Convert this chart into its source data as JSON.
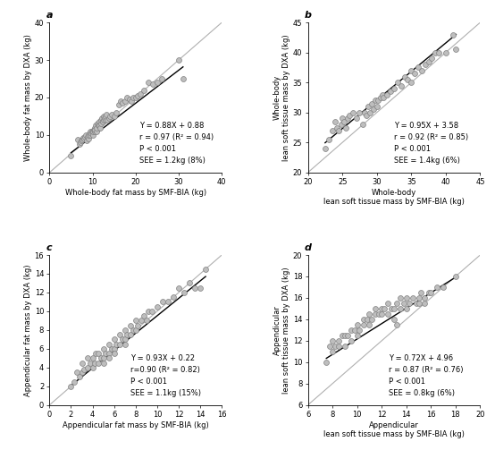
{
  "panels": [
    {
      "label": "a",
      "xlabel": "Whole-body fat mass by SMF-BIA (kg)",
      "ylabel": "Whole-body fat mass by DXA (kg)",
      "xlim": [
        0,
        40
      ],
      "ylim": [
        0,
        40
      ],
      "xticks": [
        0,
        10,
        20,
        30,
        40
      ],
      "yticks": [
        0,
        10,
        20,
        30,
        40
      ],
      "slope": 0.88,
      "intercept": 0.88,
      "reg_x_start": 5.0,
      "reg_x_end": 31.0,
      "annotation": "Y = 0.88X + 0.88\nr = 0.97 (R² = 0.94)\nP < 0.001\nSEE = 1.2kg (8%)",
      "ann_x": 0.52,
      "ann_y": 0.05,
      "scatter_x": [
        5.0,
        6.5,
        7.0,
        7.2,
        7.4,
        7.6,
        7.8,
        8.0,
        8.2,
        8.4,
        8.6,
        8.8,
        9.0,
        9.0,
        9.2,
        9.4,
        9.5,
        9.6,
        9.8,
        10.0,
        10.0,
        10.2,
        10.4,
        10.5,
        10.6,
        10.8,
        11.0,
        11.0,
        11.2,
        11.4,
        11.5,
        11.6,
        11.8,
        12.0,
        12.0,
        12.2,
        12.4,
        12.5,
        12.6,
        12.8,
        13.0,
        13.0,
        13.2,
        13.5,
        13.8,
        14.0,
        14.5,
        15.0,
        15.5,
        16.0,
        16.5,
        17.0,
        17.5,
        18.0,
        18.5,
        19.0,
        19.5,
        20.0,
        20.5,
        21.0,
        22.0,
        23.0,
        24.0,
        25.0,
        26.0,
        30.0,
        31.0
      ],
      "scatter_y": [
        4.5,
        8.8,
        7.5,
        8.0,
        8.5,
        8.8,
        9.2,
        9.0,
        9.5,
        10.0,
        8.5,
        9.5,
        9.0,
        10.0,
        10.5,
        10.0,
        11.0,
        10.5,
        11.0,
        10.0,
        11.0,
        11.5,
        11.0,
        12.0,
        11.5,
        12.5,
        11.0,
        12.0,
        13.0,
        12.5,
        13.5,
        12.5,
        12.0,
        13.0,
        14.0,
        14.5,
        13.5,
        14.0,
        15.0,
        14.5,
        14.0,
        15.0,
        15.5,
        14.0,
        14.5,
        15.0,
        15.5,
        15.0,
        16.0,
        18.0,
        19.0,
        18.5,
        19.0,
        20.0,
        19.5,
        19.0,
        20.0,
        20.0,
        20.5,
        21.0,
        22.0,
        24.0,
        23.5,
        24.0,
        25.0,
        30.0,
        25.0
      ]
    },
    {
      "label": "b",
      "xlabel": "Whole-body\nlean soft tissue mass by SMF-BIA (kg)",
      "ylabel": "Whole-body\nlean soft tissue mass by DXA (kg)",
      "xlim": [
        20,
        45
      ],
      "ylim": [
        20,
        45
      ],
      "xticks": [
        20,
        25,
        30,
        35,
        40,
        45
      ],
      "yticks": [
        20,
        25,
        30,
        35,
        40,
        45
      ],
      "slope": 0.95,
      "intercept": 3.58,
      "reg_x_start": 22.5,
      "reg_x_end": 41.5,
      "annotation": "Y = 0.95X + 3.58\nr = 0.92 (R² = 0.85)\nP < 0.001\nSEE = 1.4kg (6%)",
      "ann_x": 0.5,
      "ann_y": 0.05,
      "scatter_x": [
        22.5,
        23.0,
        23.5,
        24.0,
        24.2,
        24.5,
        24.8,
        25.0,
        25.2,
        25.5,
        25.8,
        26.0,
        26.5,
        27.0,
        27.5,
        28.0,
        28.2,
        28.5,
        28.8,
        29.0,
        29.2,
        29.5,
        29.8,
        30.0,
        30.2,
        30.5,
        30.8,
        31.0,
        31.5,
        32.0,
        32.5,
        33.0,
        33.5,
        34.0,
        34.5,
        35.0,
        35.0,
        35.5,
        36.0,
        36.5,
        37.0,
        37.5,
        38.0,
        38.5,
        39.0,
        40.0,
        41.0,
        41.5
      ],
      "scatter_y": [
        24.0,
        25.5,
        27.0,
        28.5,
        27.5,
        27.0,
        28.0,
        29.0,
        28.5,
        27.5,
        29.0,
        29.5,
        30.0,
        29.0,
        30.0,
        28.0,
        30.0,
        29.5,
        31.0,
        30.0,
        31.5,
        30.5,
        32.0,
        31.0,
        32.0,
        32.5,
        33.0,
        32.5,
        33.0,
        33.5,
        34.0,
        35.0,
        34.5,
        36.0,
        35.5,
        35.0,
        37.0,
        36.5,
        37.5,
        37.0,
        38.0,
        38.5,
        39.0,
        40.0,
        40.0,
        40.0,
        43.0,
        40.5
      ]
    },
    {
      "label": "c",
      "xlabel": "Appendicular fat mass by SMF-BIA (kg)",
      "ylabel": "Appendicular fat mass by DXA (kg)",
      "xlim": [
        0,
        16
      ],
      "ylim": [
        0,
        16
      ],
      "xticks": [
        0,
        2,
        4,
        6,
        8,
        10,
        12,
        14,
        16
      ],
      "yticks": [
        0,
        2,
        4,
        6,
        8,
        10,
        12,
        14,
        16
      ],
      "slope": 0.93,
      "intercept": 0.22,
      "reg_x_start": 2.0,
      "reg_x_end": 14.5,
      "annotation": "Y = 0.93X + 0.22\nr=0.90 (R² = 0.82)\nP < 0.001\nSEE = 1.1kg (15%)",
      "ann_x": 0.47,
      "ann_y": 0.05,
      "scatter_x": [
        2.0,
        2.3,
        2.5,
        2.8,
        3.0,
        3.0,
        3.2,
        3.5,
        3.5,
        3.8,
        4.0,
        4.0,
        4.2,
        4.3,
        4.5,
        4.5,
        4.8,
        5.0,
        5.0,
        5.0,
        5.2,
        5.5,
        5.5,
        5.5,
        5.8,
        6.0,
        6.0,
        6.0,
        6.2,
        6.5,
        6.5,
        6.8,
        7.0,
        7.0,
        7.0,
        7.2,
        7.5,
        7.5,
        7.8,
        8.0,
        8.0,
        8.2,
        8.5,
        8.8,
        9.0,
        9.2,
        9.5,
        10.0,
        10.5,
        11.0,
        11.5,
        12.0,
        12.5,
        13.0,
        13.5,
        14.0,
        14.5
      ],
      "scatter_y": [
        2.0,
        2.5,
        3.5,
        3.0,
        3.5,
        4.5,
        3.8,
        4.0,
        5.0,
        4.5,
        4.0,
        5.0,
        4.5,
        5.5,
        4.5,
        5.5,
        5.0,
        4.5,
        5.0,
        6.0,
        5.5,
        5.5,
        6.5,
        5.0,
        6.0,
        6.0,
        7.0,
        5.5,
        6.5,
        6.5,
        7.5,
        7.0,
        7.0,
        8.0,
        6.5,
        7.5,
        7.5,
        8.5,
        8.0,
        8.0,
        9.0,
        8.5,
        9.0,
        9.5,
        9.0,
        10.0,
        10.0,
        10.5,
        11.0,
        11.0,
        11.5,
        12.5,
        12.0,
        13.0,
        12.5,
        12.5,
        14.5
      ]
    },
    {
      "label": "d",
      "xlabel": "Appendicular\nlean soft tissue mass by SMF-BIA (kg)",
      "ylabel": "Appendicular\nlean soft tissue mass by DXA (kg)",
      "xlim": [
        6,
        20
      ],
      "ylim": [
        6,
        20
      ],
      "xticks": [
        6,
        8,
        10,
        12,
        14,
        16,
        18,
        20
      ],
      "yticks": [
        6,
        8,
        10,
        12,
        14,
        16,
        18,
        20
      ],
      "slope": 0.72,
      "intercept": 4.96,
      "reg_x_start": 7.5,
      "reg_x_end": 18.0,
      "annotation": "Y = 0.72X + 4.96\nr = 0.87 (R² = 0.76)\nP < 0.001\nSEE = 0.8kg (6%)",
      "ann_x": 0.47,
      "ann_y": 0.05,
      "scatter_x": [
        7.5,
        7.8,
        8.0,
        8.0,
        8.2,
        8.5,
        8.5,
        8.8,
        9.0,
        9.0,
        9.2,
        9.5,
        9.5,
        9.8,
        10.0,
        10.0,
        10.2,
        10.5,
        10.5,
        10.8,
        11.0,
        11.0,
        11.2,
        11.5,
        11.5,
        11.8,
        12.0,
        12.0,
        12.2,
        12.5,
        12.5,
        12.8,
        13.0,
        13.0,
        13.2,
        13.5,
        13.5,
        13.8,
        14.0,
        14.0,
        14.2,
        14.5,
        14.8,
        15.0,
        15.0,
        15.2,
        15.5,
        15.8,
        16.0,
        16.5,
        17.0,
        18.0,
        15.5,
        13.2
      ],
      "scatter_y": [
        10.0,
        11.5,
        11.0,
        12.0,
        11.5,
        12.0,
        11.5,
        12.5,
        11.5,
        12.5,
        12.5,
        13.0,
        12.0,
        13.0,
        12.5,
        13.5,
        13.0,
        13.5,
        14.0,
        14.0,
        13.5,
        14.5,
        14.0,
        14.5,
        15.0,
        14.5,
        14.5,
        15.0,
        15.0,
        14.5,
        15.5,
        15.0,
        15.0,
        14.0,
        15.5,
        15.0,
        16.0,
        15.5,
        15.0,
        16.0,
        15.5,
        16.0,
        15.5,
        16.0,
        15.5,
        16.5,
        16.0,
        16.5,
        16.5,
        17.0,
        17.0,
        18.0,
        15.5,
        13.5
      ]
    }
  ],
  "marker_color": "#bebebe",
  "marker_edge_color": "#808080",
  "regression_line_color": "#000000",
  "identity_line_color": "#b0b0b0",
  "marker_size": 18,
  "marker_edge_width": 0.5
}
